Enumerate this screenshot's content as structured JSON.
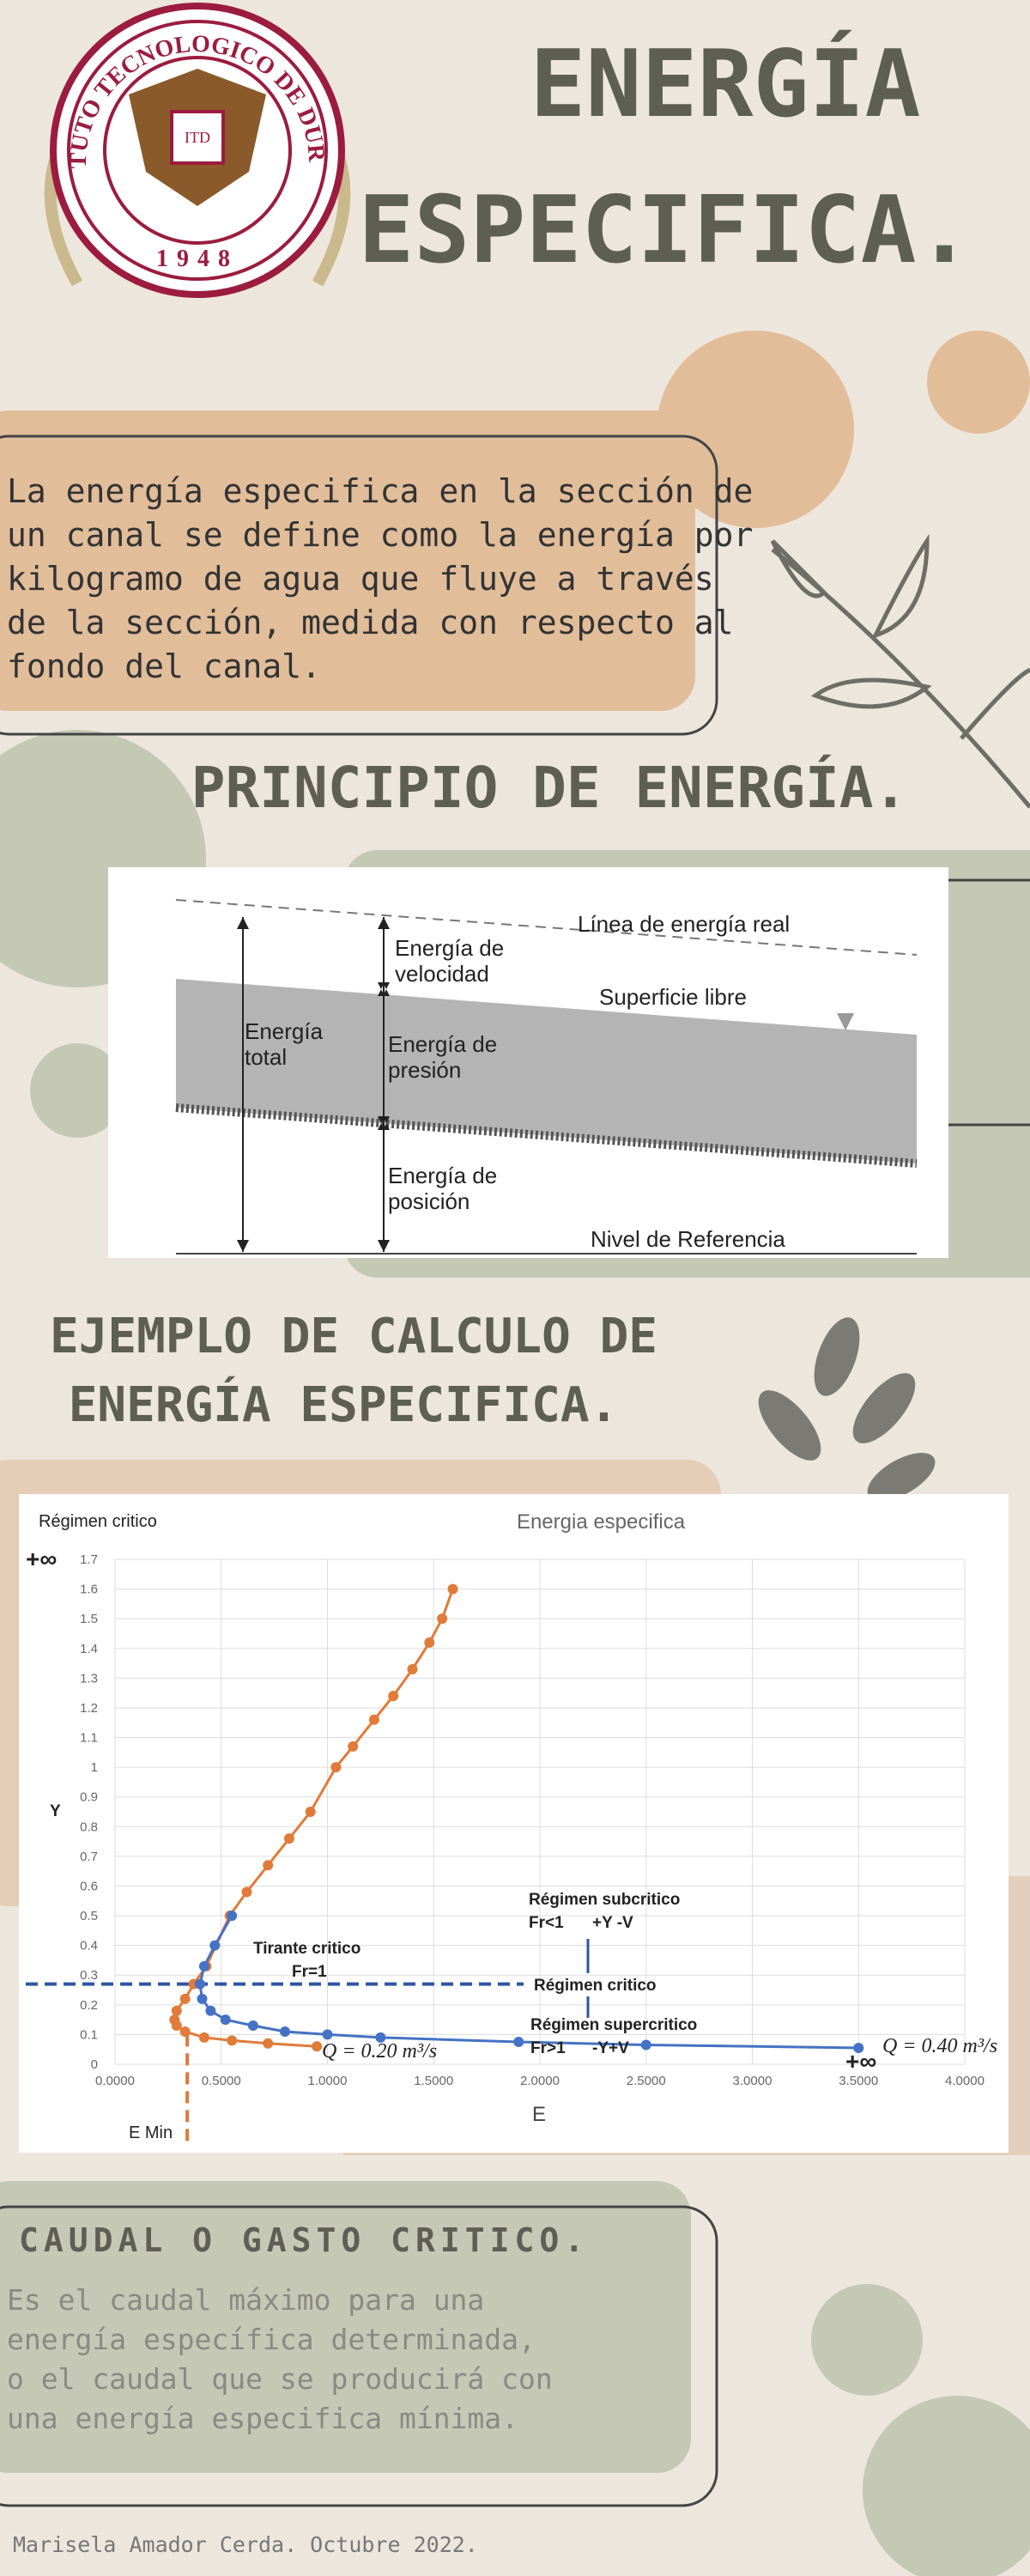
{
  "header": {
    "title": [
      "ENERGÍA",
      "ESPECIFICA."
    ]
  },
  "logo": {
    "ring": "INSTITUTO TECNOLOGICO DE DURANGO",
    "year": "1948",
    "mark": "ITD"
  },
  "intro": {
    "lines": [
      "La energía especifica en la sección de",
      "un canal se define como la energía por",
      "kilogramo de agua que fluye a través",
      "de la sección, medida con respecto al",
      "fondo del canal."
    ]
  },
  "principle": {
    "title": "PRINCIPIO DE ENERGÍA."
  },
  "diagram": {
    "energy_line": "Línea de energía real",
    "velocity": [
      "Energía de",
      "velocidad"
    ],
    "surface": "Superficie libre",
    "total": [
      "Energía",
      "total"
    ],
    "pressure": [
      "Energía de",
      "presión"
    ],
    "position": [
      "Energía de",
      "posición"
    ],
    "reference": "Nivel de Referencia"
  },
  "example": {
    "title": [
      "EJEMPLO DE CALCULO DE",
      "ENERGÍA ESPECIFICA."
    ]
  },
  "chart": {
    "type": "scatter",
    "title": "Energia especifica",
    "corner_label": "Régimen critico",
    "x_label": "E",
    "y_label": "Y",
    "infinity_top": "+∞",
    "infinity_right": "+∞",
    "e_min_label": "E Min",
    "xlim": [
      0,
      4
    ],
    "ylim": [
      0,
      1.7
    ],
    "xticks": [
      {
        "value": 0,
        "label": "0.0000"
      },
      {
        "value": 0.5,
        "label": "0.5000"
      },
      {
        "value": 1,
        "label": "1.0000"
      },
      {
        "value": 1.5,
        "label": "1.5000"
      },
      {
        "value": 2,
        "label": "2.0000"
      },
      {
        "value": 2.5,
        "label": "2.5000"
      },
      {
        "value": 3,
        "label": "3.0000"
      },
      {
        "value": 3.5,
        "label": "3.5000"
      },
      {
        "value": 4,
        "label": "4.0000"
      }
    ],
    "yticks": [
      0,
      0.1,
      0.2,
      0.3,
      0.4,
      0.5,
      0.6,
      0.7,
      0.8,
      0.9,
      1,
      1.1,
      1.2,
      1.3,
      1.4,
      1.5,
      1.6,
      1.7
    ],
    "grid": true,
    "critical_depth": 0.27,
    "e_min": 0.34,
    "annotations": {
      "critical_depth": [
        "Tirante critico",
        "Fr=1"
      ],
      "subcritical": [
        "Régimen subcritico",
        "Fr<1",
        "+Y -V"
      ],
      "critical": "Régimen critico",
      "supercritical": [
        "Régimen supercritico",
        "Fr>1",
        "-Y+V"
      ]
    },
    "series": [
      {
        "name": "Q = 0.20 m³/s",
        "color": "#e07b39",
        "x": [
          0.95,
          0.72,
          0.55,
          0.42,
          0.33,
          0.29,
          0.28,
          0.29,
          0.33,
          0.37,
          0.43,
          0.54,
          0.62,
          0.72,
          0.82,
          0.92,
          1.04,
          1.12,
          1.22,
          1.31,
          1.4,
          1.48,
          1.54,
          1.59
        ],
        "y": [
          0.06,
          0.07,
          0.08,
          0.09,
          0.11,
          0.13,
          0.15,
          0.18,
          0.22,
          0.27,
          0.33,
          0.5,
          0.58,
          0.67,
          0.76,
          0.85,
          1.0,
          1.07,
          1.16,
          1.24,
          1.33,
          1.42,
          1.5,
          1.6
        ]
      },
      {
        "name": "Q = 0.40 m³/s",
        "color": "#4472c4",
        "x": [
          3.5,
          2.5,
          1.9,
          1.25,
          1.0,
          0.8,
          0.65,
          0.52,
          0.45,
          0.41,
          0.4,
          0.42,
          0.47,
          0.55
        ],
        "y": [
          0.055,
          0.065,
          0.075,
          0.09,
          0.1,
          0.11,
          0.13,
          0.15,
          0.18,
          0.22,
          0.27,
          0.33,
          0.4,
          0.5
        ]
      }
    ]
  },
  "caudal": {
    "title": "CAUDAL O GASTO CRITICO.",
    "lines": [
      "Es el caudal máximo para una",
      "energía específica determinada,",
      "o el caudal que se producirá con",
      "una energía especifica mínima."
    ]
  },
  "footer": "Marisela Amador Cerda. Octubre 2022."
}
